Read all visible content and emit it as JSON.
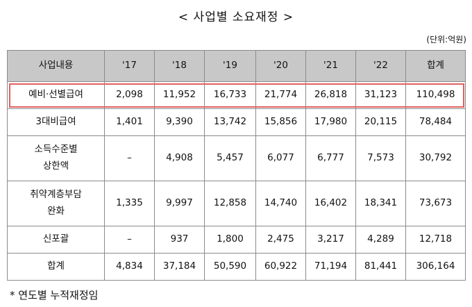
{
  "title": "< 사업별 소요재정 >",
  "unit": "(단위:억원)",
  "table": {
    "headers": [
      "사업내용",
      "'17",
      "'18",
      "'19",
      "'20",
      "'21",
      "'22",
      "합계"
    ],
    "rows": [
      {
        "label_lines": [
          "예비·선별급여"
        ],
        "values": [
          "2,098",
          "11,952",
          "16,733",
          "21,774",
          "26,818",
          "31,123",
          "110,498"
        ]
      },
      {
        "label_lines": [
          "3대비급여"
        ],
        "values": [
          "1,401",
          "9,390",
          "13,742",
          "15,856",
          "17,980",
          "20,115",
          "78,484"
        ]
      },
      {
        "label_lines": [
          "소득수준별",
          "상한액"
        ],
        "values": [
          "–",
          "4,908",
          "5,457",
          "6,077",
          "6,777",
          "7,573",
          "30,792"
        ]
      },
      {
        "label_lines": [
          "취약계층부담",
          "완화"
        ],
        "values": [
          "1,335",
          "9,997",
          "12,858",
          "14,740",
          "16,402",
          "18,341",
          "73,673"
        ]
      },
      {
        "label_lines": [
          "신포괄"
        ],
        "values": [
          "–",
          "937",
          "1,800",
          "2,475",
          "3,217",
          "4,289",
          "12,718"
        ]
      },
      {
        "label_lines": [
          "합계"
        ],
        "values": [
          "4,834",
          "37,184",
          "50,590",
          "60,922",
          "71,194",
          "81,441",
          "306,164"
        ]
      }
    ]
  },
  "note": "* 연도별 누적재정임",
  "colors": {
    "header_bg": "#c8c8c8",
    "highlight_border": "#e06060"
  }
}
